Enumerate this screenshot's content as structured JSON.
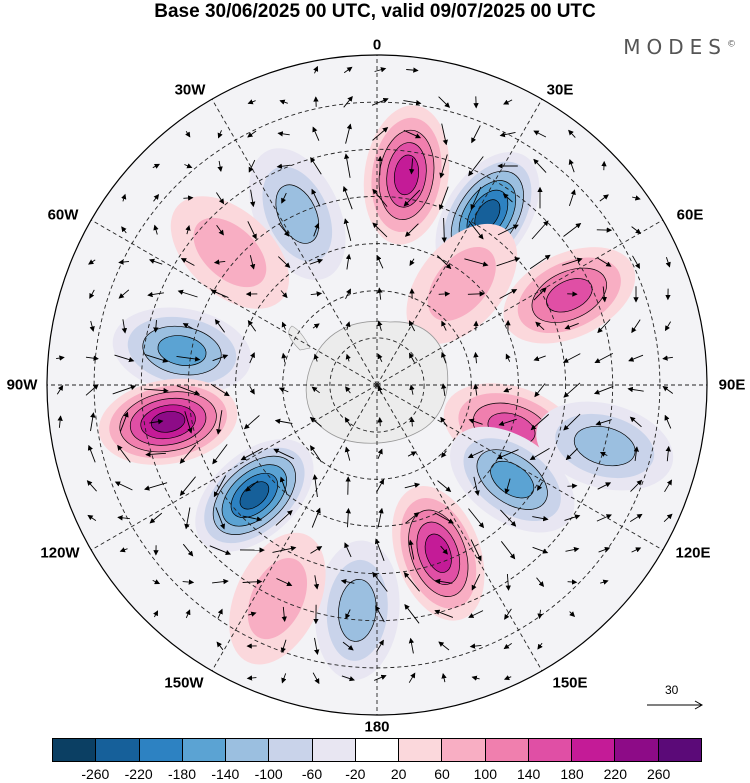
{
  "title": "Base 30/06/2025 00 UTC, valid 09/07/2025 00 UTC",
  "brand": "MODES",
  "brand_mark": "©",
  "lon_labels": {
    "l0": "0",
    "l30e": "30E",
    "l60e": "60E",
    "l90e": "90E",
    "l120e": "120E",
    "l150e": "150E",
    "l180": "180",
    "l150w": "150W",
    "l120w": "120W",
    "l90w": "90W",
    "l60w": "60W",
    "l30w": "30W"
  },
  "reference_vector": "30",
  "colorbar": {
    "colors": [
      "#0b3f63",
      "#16609a",
      "#2d82c2",
      "#5ba3d3",
      "#9bbfe0",
      "#c9d3ea",
      "#e8e6f2",
      "#ffffff",
      "#fbd8dc",
      "#f8aec3",
      "#f07fae",
      "#e04fa5",
      "#c41b97",
      "#8d0b87",
      "#5b0a78"
    ],
    "labels": [
      "-260",
      "-220",
      "-180",
      "-140",
      "-100",
      "-60",
      "-20",
      "20",
      "60",
      "100",
      "140",
      "180",
      "220",
      "260"
    ]
  },
  "anomaly_centers": [
    {
      "lon": 8,
      "lat": -45,
      "value": 210
    },
    {
      "lon": 33,
      "lat": -47,
      "value": -230
    },
    {
      "lon": -25,
      "lat": -50,
      "value": -130
    },
    {
      "lon": -48,
      "lat": -48,
      "value": 80
    },
    {
      "lon": 65,
      "lat": -45,
      "value": 140
    },
    {
      "lon": 40,
      "lat": -62,
      "value": 90
    },
    {
      "lon": -80,
      "lat": -48,
      "value": -170
    },
    {
      "lon": -100,
      "lat": -45,
      "value": 250
    },
    {
      "lon": -132,
      "lat": -55,
      "value": -230
    },
    {
      "lon": 108,
      "lat": -60,
      "value": 150
    },
    {
      "lon": 125,
      "lat": -55,
      "value": -170
    },
    {
      "lon": 160,
      "lat": -52,
      "value": 180
    },
    {
      "lon": -175,
      "lat": -42,
      "value": -130
    },
    {
      "lon": -155,
      "lat": -40,
      "value": 80
    },
    {
      "lon": 105,
      "lat": -40,
      "value": -120
    }
  ]
}
